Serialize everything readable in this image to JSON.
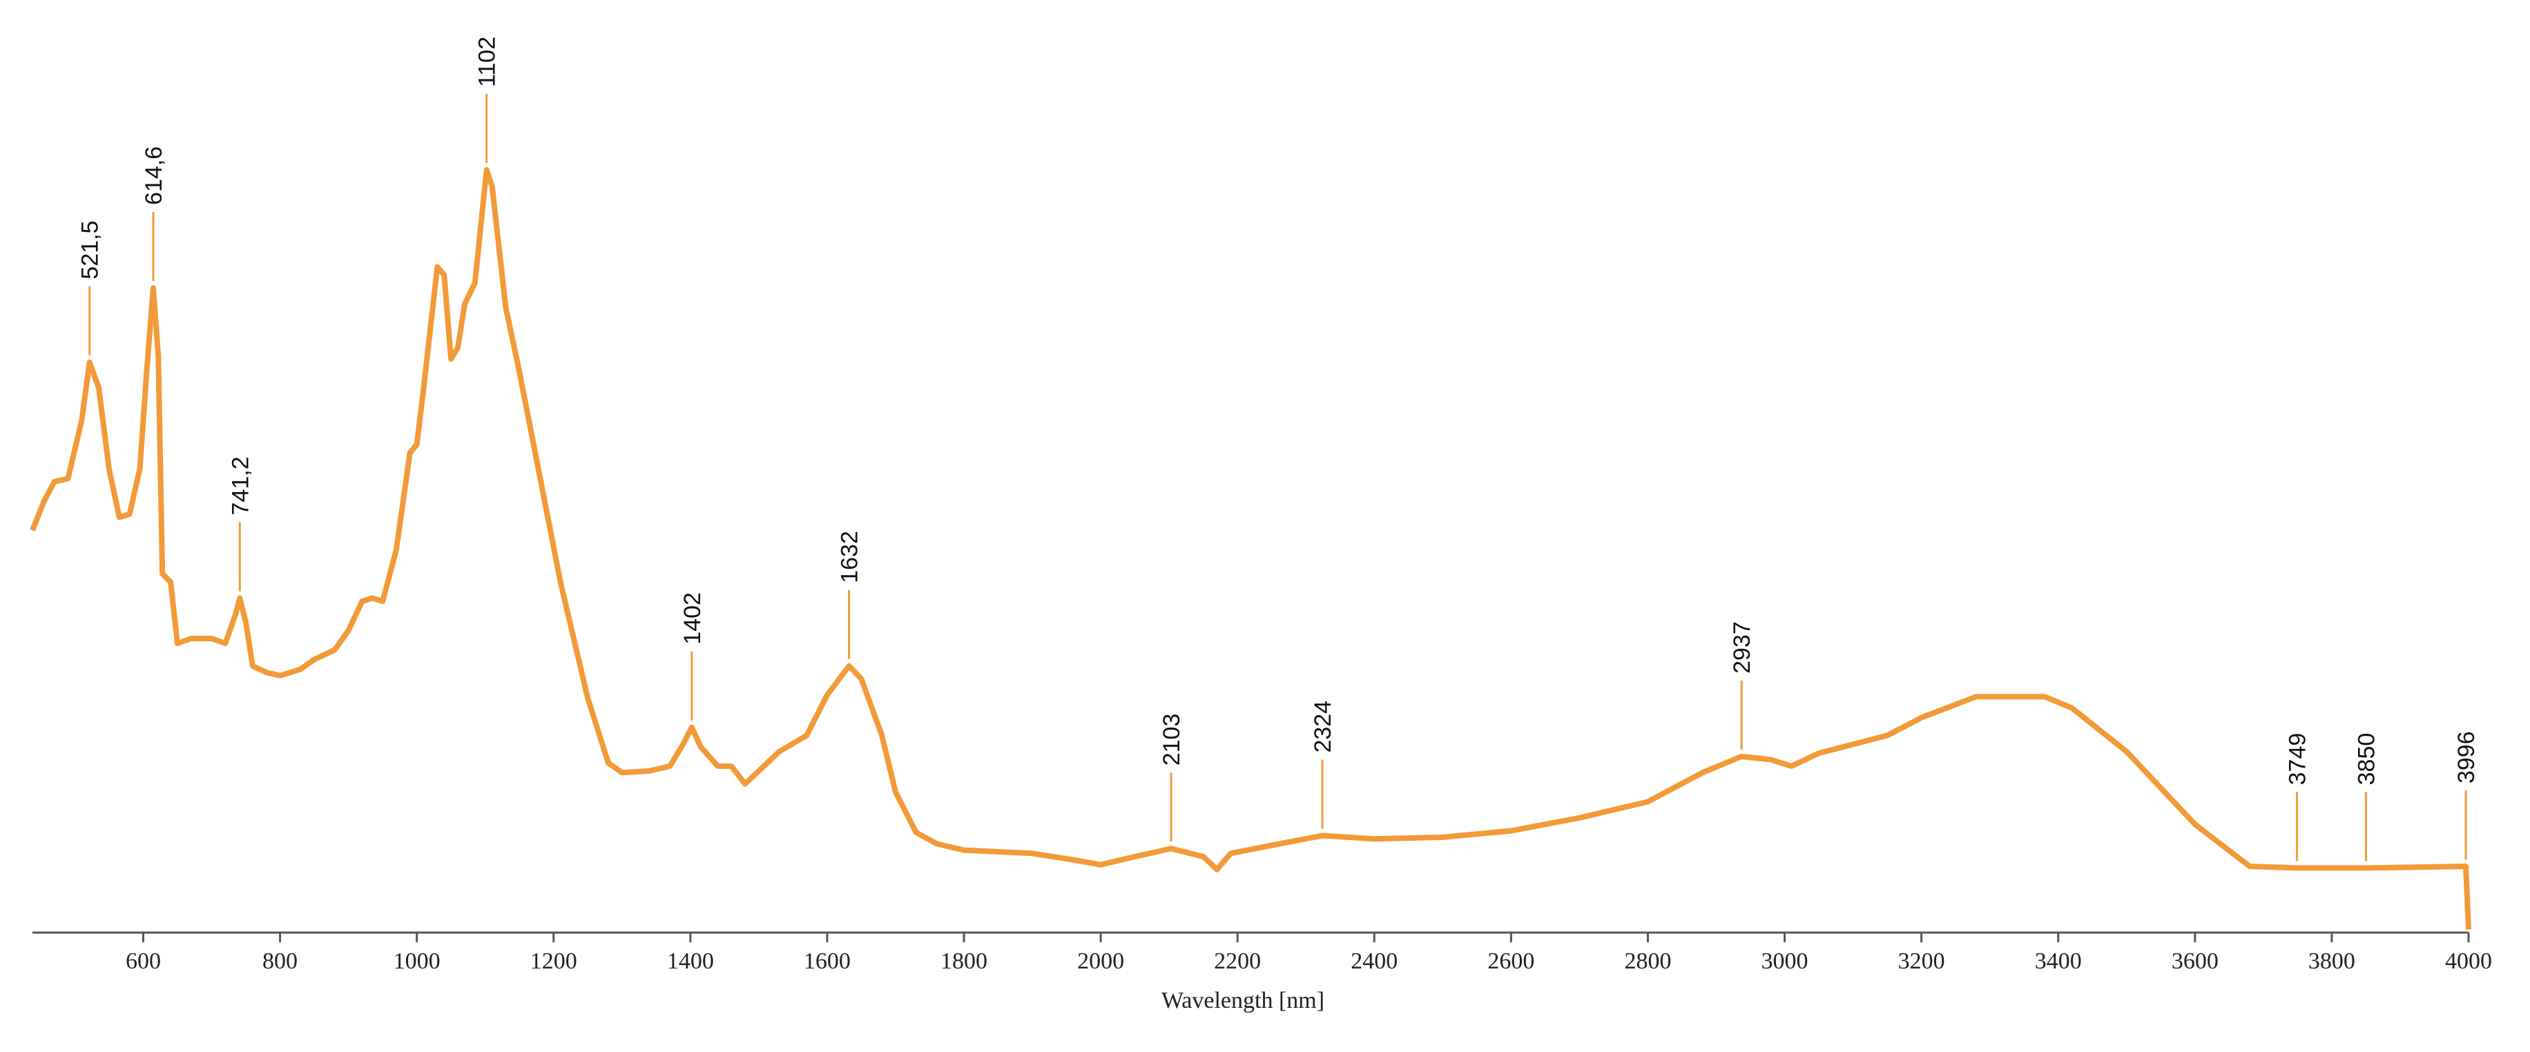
{
  "chart_data": {
    "type": "line",
    "xlabel": "Wavelength [nm]",
    "xlim": [
      438,
      4000
    ],
    "ylim": [
      0,
      115
    ],
    "xticks": [
      600,
      800,
      1000,
      1200,
      1400,
      1600,
      1800,
      2000,
      2200,
      2400,
      2600,
      2800,
      3000,
      3200,
      3400,
      3600,
      3800,
      4000
    ],
    "series": [
      {
        "color": "#f29a38",
        "x": [
          438,
          455,
          470,
          490,
          510,
          521.5,
          535,
          550,
          565,
          580,
          595,
          605,
          614.6,
          622,
          628,
          640,
          650,
          670,
          700,
          720,
          735,
          741.2,
          750,
          760,
          780,
          800,
          830,
          850,
          880,
          900,
          920,
          935,
          950,
          970,
          990,
          1000,
          1010,
          1030,
          1040,
          1050,
          1060,
          1070,
          1085,
          1102,
          1110,
          1130,
          1150,
          1180,
          1210,
          1250,
          1280,
          1300,
          1340,
          1370,
          1390,
          1402,
          1415,
          1440,
          1460,
          1480,
          1500,
          1530,
          1570,
          1600,
          1632,
          1650,
          1680,
          1700,
          1730,
          1760,
          1800,
          1900,
          1960,
          2000,
          2050,
          2103,
          2150,
          2170,
          2190,
          2250,
          2324,
          2400,
          2500,
          2600,
          2700,
          2800,
          2880,
          2937,
          2980,
          3010,
          3050,
          3150,
          3200,
          3280,
          3380,
          3420,
          3500,
          3600,
          3680,
          3749,
          3850,
          3996,
          4000
        ],
        "values": [
          49.8,
          53.4,
          55.8,
          56.2,
          63.4,
          70.6,
          67.4,
          57.4,
          51.4,
          51.8,
          57.4,
          69.4,
          79.8,
          71.4,
          44.4,
          43.4,
          35.8,
          36.4,
          36.4,
          35.8,
          39.4,
          41.4,
          38.4,
          33,
          32.2,
          31.8,
          32.6,
          33.8,
          35,
          37.4,
          41,
          41.4,
          41,
          47.4,
          59.4,
          60.4,
          67.4,
          82.4,
          81.4,
          71,
          72.4,
          77.8,
          80.4,
          94.4,
          92.4,
          77.4,
          69.4,
          56.4,
          43.4,
          29,
          21,
          19.8,
          20,
          20.6,
          23.4,
          25.4,
          23,
          20.6,
          20.6,
          18.4,
          20,
          22.4,
          24.4,
          29.4,
          33,
          31.4,
          24.4,
          17.4,
          12.4,
          11,
          10.2,
          9.8,
          9,
          8.4,
          9.4,
          10.4,
          9.4,
          7.8,
          9.8,
          10.8,
          12,
          11.6,
          11.8,
          12.6,
          14.2,
          16.2,
          19.8,
          21.8,
          21.4,
          20.6,
          22.2,
          24.4,
          26.6,
          29.2,
          29.2,
          27.8,
          22.4,
          13.4,
          8.2,
          8,
          8,
          8.2,
          0.4
        ]
      }
    ],
    "peaks": [
      {
        "value": 521.5,
        "label": "521,5"
      },
      {
        "value": 614.6,
        "label": "614,6"
      },
      {
        "value": 741.2,
        "label": "741,2"
      },
      1102,
      1402,
      1632,
      2103,
      2324,
      2937,
      3749,
      3850,
      3996
    ]
  }
}
